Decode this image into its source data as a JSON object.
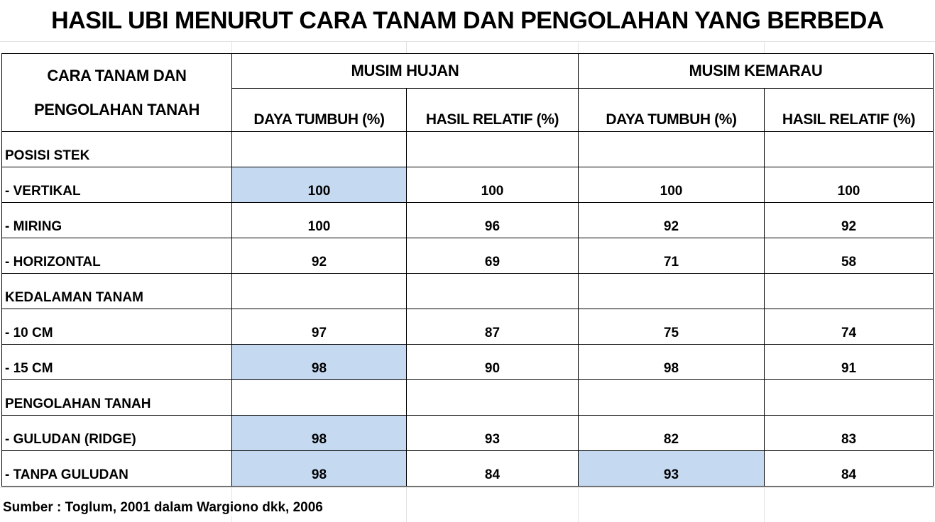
{
  "title": "HASIL UBI MENURUT CARA TANAM DAN PENGOLAHAN YANG BERBEDA",
  "header": {
    "col0_line1": "CARA TANAM DAN",
    "col0_line2": "PENGOLAHAN TANAH",
    "season1": "MUSIM HUJAN",
    "season2": "MUSIM KEMARAU",
    "sub1": "DAYA TUMBUH (%)",
    "sub2": "HASIL RELATIF (%)",
    "sub3": "DAYA TUMBUH (%)",
    "sub4": "HASIL RELATIF (%)"
  },
  "rows": [
    {
      "label": "POSISI STEK",
      "v": [
        "",
        "",
        "",
        ""
      ]
    },
    {
      "label": "- VERTIKAL",
      "v": [
        "100",
        "100",
        "100",
        "100"
      ]
    },
    {
      "label": "- MIRING",
      "v": [
        "100",
        "96",
        "92",
        "92"
      ]
    },
    {
      "label": "- HORIZONTAL",
      "v": [
        "92",
        "69",
        "71",
        "58"
      ]
    },
    {
      "label": "KEDALAMAN TANAM",
      "v": [
        "",
        "",
        "",
        ""
      ]
    },
    {
      "label": "- 10 CM",
      "v": [
        "97",
        "87",
        "75",
        "74"
      ]
    },
    {
      "label": "- 15 CM",
      "v": [
        "98",
        "90",
        "98",
        "91"
      ]
    },
    {
      "label": "PENGOLAHAN TANAH",
      "v": [
        "",
        "",
        "",
        ""
      ]
    },
    {
      "label": "- GULUDAN (RIDGE)",
      "v": [
        "98",
        "93",
        "82",
        "83"
      ]
    },
    {
      "label": "- TANPA GULUDAN",
      "v": [
        "98",
        "84",
        "93",
        "84"
      ]
    }
  ],
  "highlight_color": "#c5d9f1",
  "source": "Sumber : Toglum, 2001 dalam Wargiono dkk, 2006"
}
